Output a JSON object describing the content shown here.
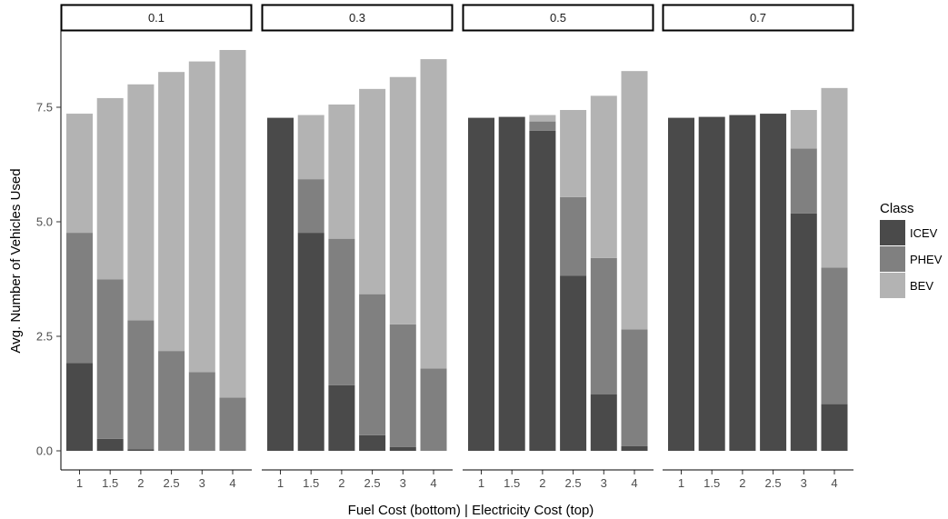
{
  "chart_data": {
    "type": "bar",
    "stacked": true,
    "facets": [
      "0.1",
      "0.3",
      "0.5",
      "0.7"
    ],
    "categories": [
      "1",
      "1.5",
      "2",
      "2.5",
      "3",
      "4"
    ],
    "xlabel": "Fuel Cost (bottom) | Electricity Cost (top)",
    "ylabel": "Avg. Number of Vehicles Used",
    "ylim": [
      0,
      8.75
    ],
    "yticks": [
      "0.0",
      "2.5",
      "5.0",
      "7.5"
    ],
    "grid": false,
    "legend": {
      "title": "Class",
      "position": "right",
      "entries": [
        "ICEV",
        "PHEV",
        "BEV"
      ]
    },
    "colors": {
      "ICEV": "#4a4a4a",
      "PHEV": "#808080",
      "BEV": "#b3b3b3"
    },
    "series": [
      {
        "name": "ICEV",
        "values": [
          [
            1.92,
            0.26,
            0.03,
            0.0,
            0.0,
            0.0
          ],
          [
            7.27,
            4.76,
            1.43,
            0.34,
            0.08,
            0.0
          ],
          [
            7.27,
            7.29,
            6.99,
            3.82,
            1.23,
            0.1
          ],
          [
            7.27,
            7.29,
            7.33,
            7.36,
            5.18,
            1.02
          ]
        ]
      },
      {
        "name": "PHEV",
        "values": [
          [
            2.84,
            3.48,
            2.82,
            2.18,
            1.72,
            1.16
          ],
          [
            0.0,
            1.17,
            3.2,
            3.08,
            2.68,
            1.8
          ],
          [
            0.0,
            0.0,
            0.2,
            1.72,
            2.98,
            2.55
          ],
          [
            0.0,
            0.0,
            0.0,
            0.0,
            1.42,
            2.98
          ]
        ]
      },
      {
        "name": "BEV",
        "values": [
          [
            2.6,
            3.96,
            5.15,
            6.09,
            6.78,
            7.59
          ],
          [
            0.0,
            1.4,
            2.93,
            4.48,
            5.4,
            6.75
          ],
          [
            0.0,
            0.0,
            0.14,
            1.9,
            3.54,
            5.64
          ],
          [
            0.0,
            0.0,
            0.0,
            0.0,
            0.84,
            3.92
          ]
        ]
      }
    ]
  }
}
